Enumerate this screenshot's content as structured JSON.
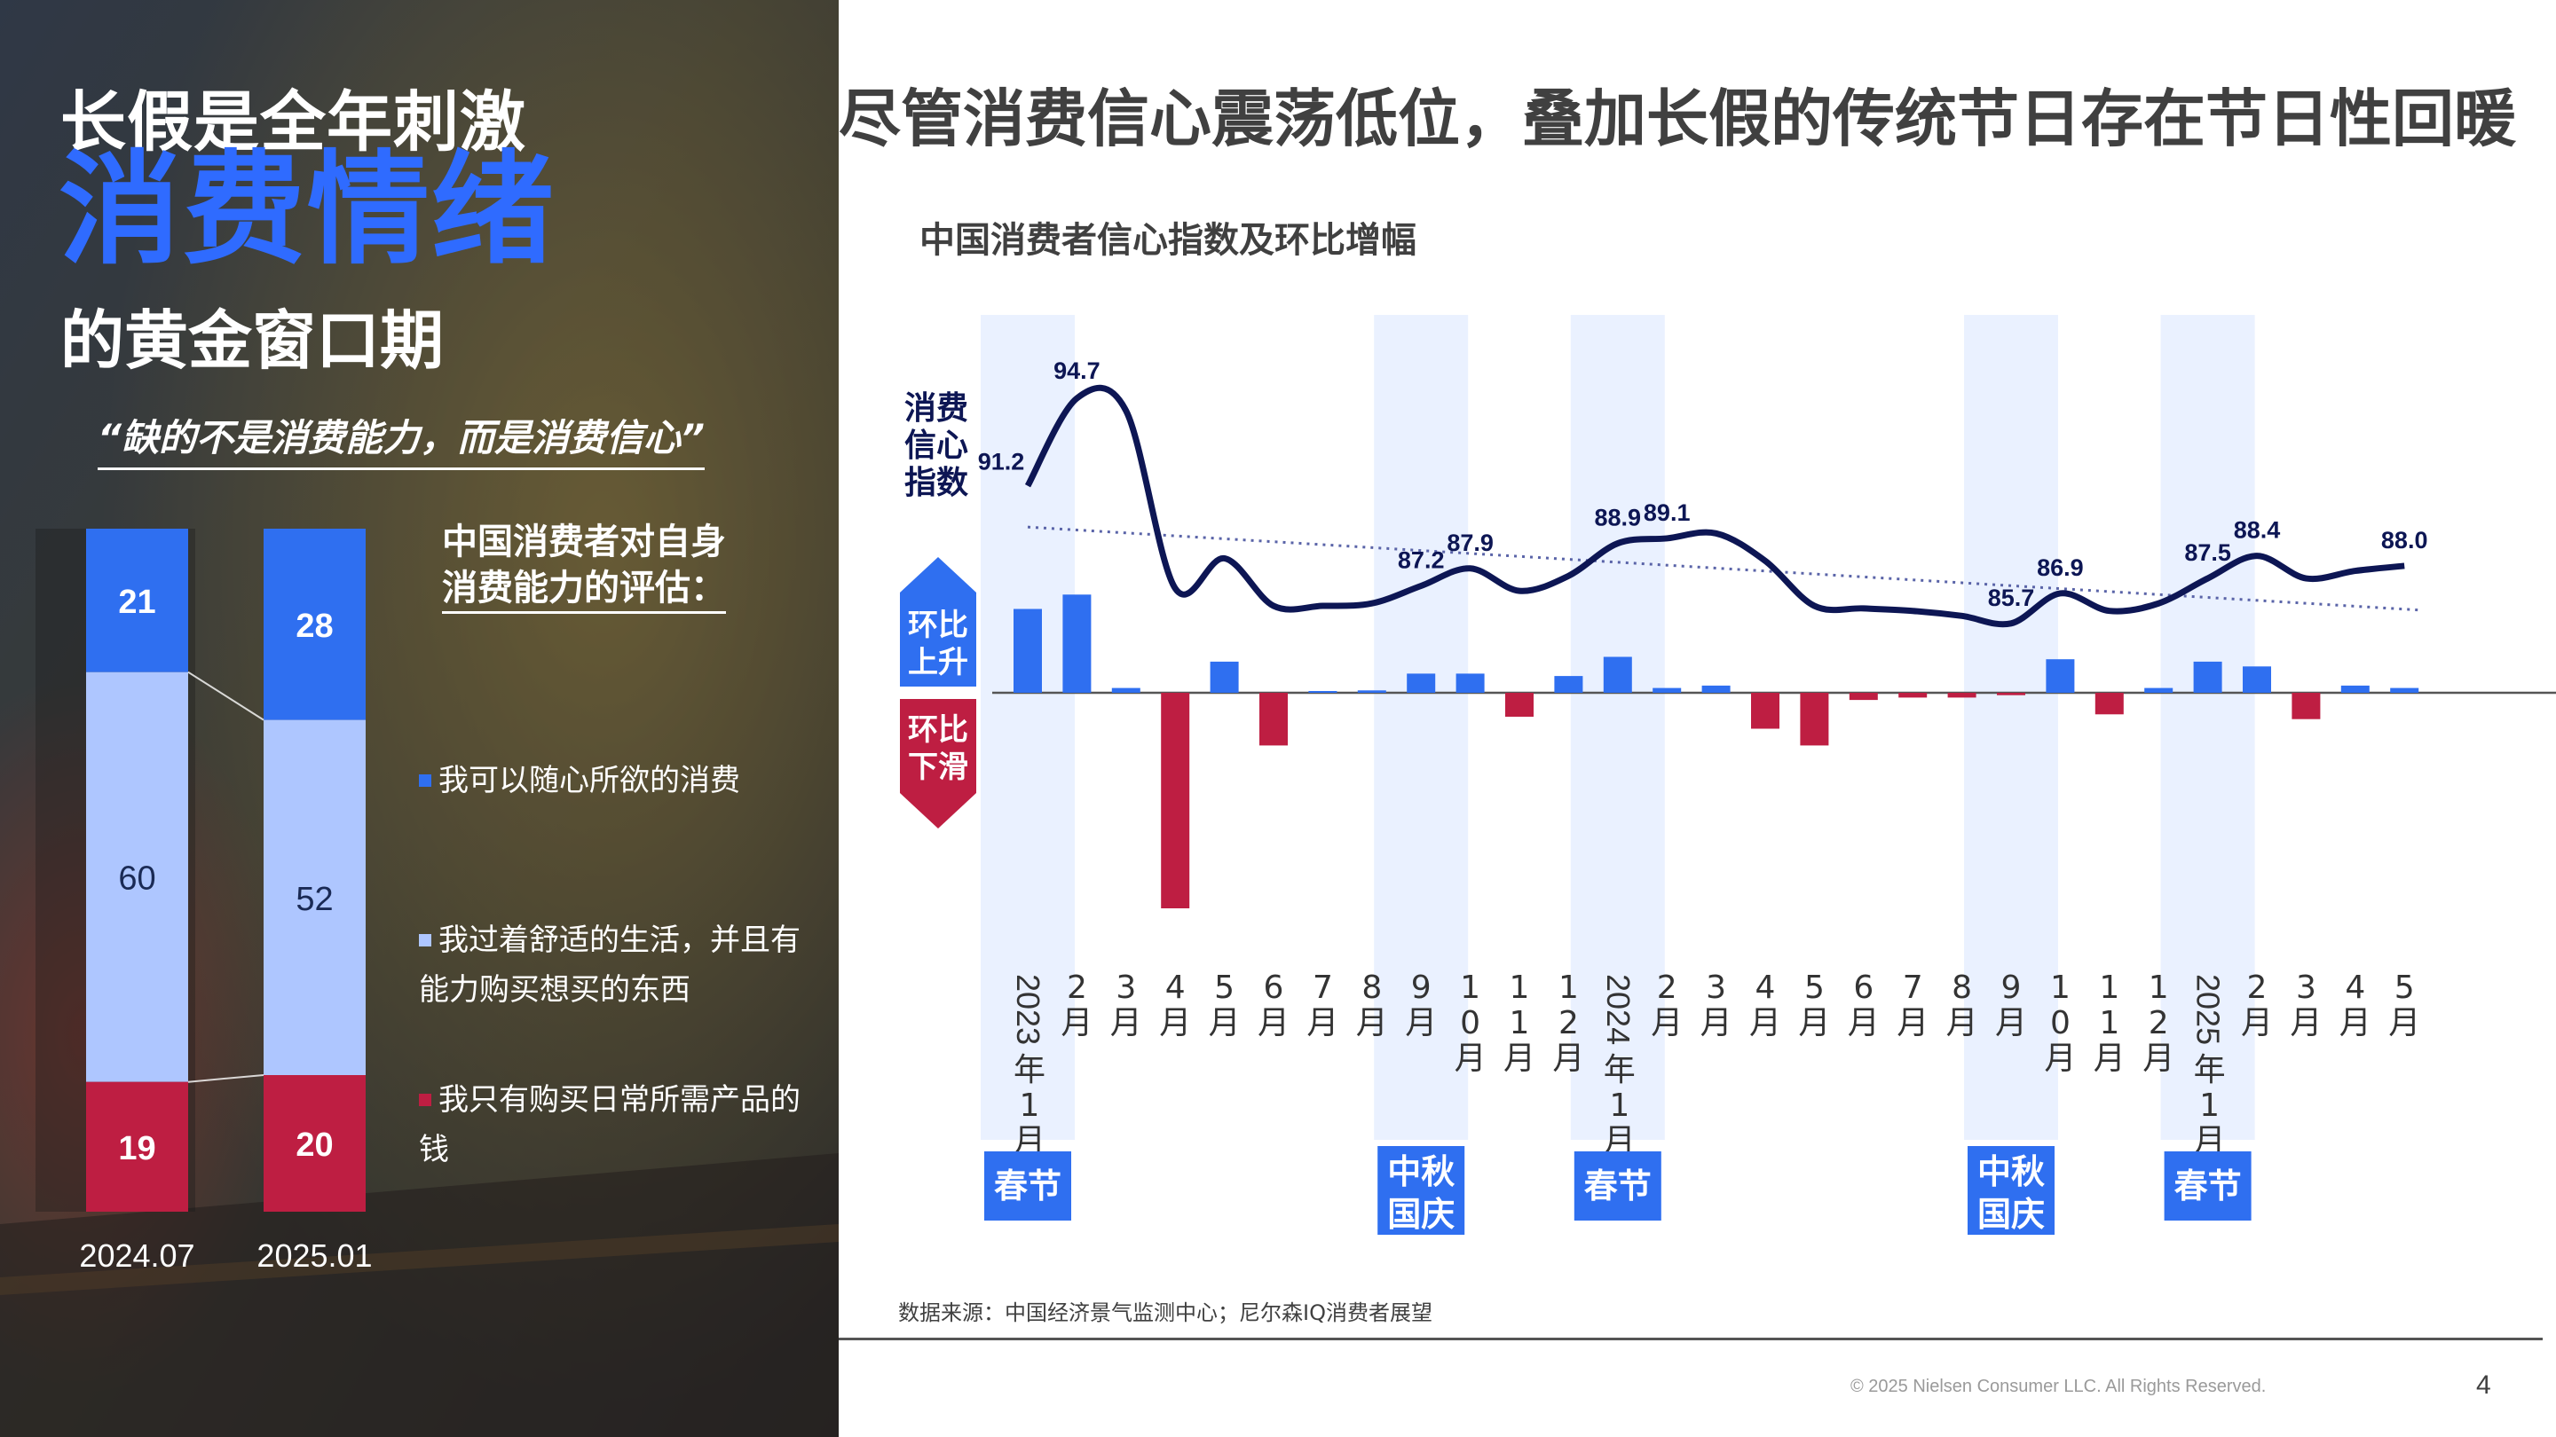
{
  "left": {
    "headline_line1": "长假是全年刺激",
    "headline_line2": "消费情绪",
    "headline_line3": "的黄金窗口期",
    "quote": "“缺的不是消费能力，而是消费信心”",
    "assessment_title_line1": "中国消费者对自身",
    "assessment_title_line2": "消费能力的评估：",
    "legend": [
      {
        "label": "我可以随心所欲的消费",
        "color": "#2f6ff0"
      },
      {
        "label": "我过着舒适的生活，并且有能力购买想买的东西",
        "color": "#aec6ff"
      },
      {
        "label": "我只有购买日常所需产品的钱",
        "color": "#be1e42"
      }
    ]
  },
  "main_title": "尽管消费信心震荡低位，叠加长假的传统节日存在节日性回暖",
  "chart_title": "中国消费者信心指数及环比增幅",
  "side_labels": {
    "index_line1": "消费",
    "index_line2": "信心",
    "index_line3": "指数",
    "up_line1": "环比",
    "up_line2": "上升",
    "down_line1": "环比",
    "down_line2": "下滑"
  },
  "holiday_labels": [
    {
      "month_index": 0,
      "line1": "春节",
      "line2": ""
    },
    {
      "month_index": 8,
      "line1": "中秋",
      "line2": "国庆"
    },
    {
      "month_index": 12,
      "line1": "春节",
      "line2": ""
    },
    {
      "month_index": 20,
      "line1": "中秋",
      "line2": "国庆"
    },
    {
      "month_index": 24,
      "line1": "春节",
      "line2": ""
    }
  ],
  "source": "数据来源：中国经济景气监测中心；尼尔森IQ消费者展望",
  "copyright": "© 2025 Nielsen Consumer LLC. All Rights Reserved.",
  "page_number": "4",
  "chart_data": [
    {
      "type": "bar",
      "title": "中国消费者对自身消费能力的评估：",
      "categories": [
        "2024.07",
        "2025.01"
      ],
      "stacked": true,
      "value_unit": "%",
      "series": [
        {
          "name": "我可以随心所欲的消费",
          "values": [
            21,
            28
          ],
          "color": "#2f6ff0"
        },
        {
          "name": "我过着舒适的生活，并且有能力购买想买的东西",
          "values": [
            60,
            52
          ],
          "color": "#aec6ff"
        },
        {
          "name": "我只有购买日常所需产品的钱",
          "values": [
            19,
            20
          ],
          "color": "#be1e42"
        }
      ],
      "legend_position": "right"
    },
    {
      "type": "line",
      "title": "中国消费者信心指数及环比增幅",
      "categories": [
        "2023年1月",
        "2月",
        "3月",
        "4月",
        "5月",
        "6月",
        "7月",
        "8月",
        "9月",
        "10月",
        "11月",
        "12月",
        "2024年1月",
        "2月",
        "3月",
        "4月",
        "5月",
        "6月",
        "7月",
        "8月",
        "9月",
        "10月",
        "11月",
        "12月",
        "2025年1月",
        "2月",
        "3月",
        "4月",
        "5月"
      ],
      "series": [
        {
          "name": "消费信心指数",
          "values": [
            91.2,
            94.7,
            94.2,
            87.1,
            88.3,
            86.4,
            86.4,
            86.5,
            87.2,
            87.9,
            87.0,
            87.6,
            88.9,
            89.1,
            89.3,
            88.2,
            86.4,
            86.3,
            86.2,
            86.0,
            85.7,
            86.9,
            86.2,
            86.5,
            87.5,
            88.4,
            87.5,
            87.8,
            88.0
          ],
          "color": "#0d1654"
        },
        {
          "name": "环比",
          "type": "bar",
          "values": [
            3.5,
            4.1,
            0.2,
            -9.0,
            1.3,
            -2.2,
            0.0,
            0.1,
            0.8,
            0.8,
            -1.0,
            0.7,
            1.5,
            0.2,
            0.3,
            -1.5,
            -2.2,
            -0.3,
            -0.2,
            -0.2,
            -0.1,
            1.4,
            -0.9,
            0.2,
            1.3,
            1.1,
            -1.1,
            0.3,
            0.2
          ],
          "color_positive": "#2f6ff0",
          "color_negative": "#be1e42"
        }
      ],
      "point_labels": [
        {
          "index": 0,
          "text": "91.2"
        },
        {
          "index": 1,
          "text": "94.7"
        },
        {
          "index": 8,
          "text": "87.2"
        },
        {
          "index": 9,
          "text": "87.9"
        },
        {
          "index": 12,
          "text": "88.9"
        },
        {
          "index": 13,
          "text": "89.1"
        },
        {
          "index": 20,
          "text": "85.7"
        },
        {
          "index": 21,
          "text": "86.9"
        },
        {
          "index": 24,
          "text": "87.5"
        },
        {
          "index": 25,
          "text": "88.4"
        },
        {
          "index": 28,
          "text": "88.0"
        }
      ],
      "trendline": true,
      "highlighted_months": [
        0,
        8,
        12,
        20,
        24
      ]
    }
  ]
}
